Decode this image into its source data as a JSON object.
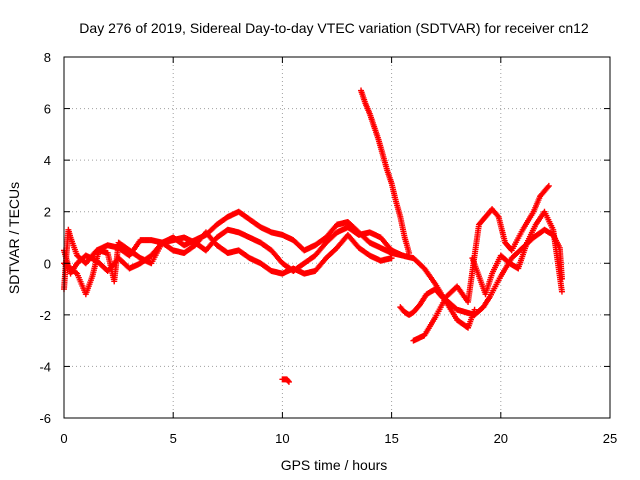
{
  "chart_data": {
    "type": "scatter",
    "title": "Day 276 of 2019, Sidereal Day-to-day VTEC variation (SDTVAR) for receiver cn12",
    "xlabel": "GPS time / hours",
    "ylabel": "SDTVAR / TECUs",
    "xlim": [
      0,
      25
    ],
    "ylim": [
      -6,
      8
    ],
    "xticks": [
      "0",
      "5",
      "10",
      "15",
      "20",
      "25"
    ],
    "yticks": [
      "-6",
      "-4",
      "-2",
      "0",
      "2",
      "4",
      "6",
      "8"
    ],
    "grid": true,
    "marker": "+",
    "series_color": "#ff0000",
    "tracks": [
      [
        [
          0.0,
          -1.0
        ],
        [
          0.1,
          0.2
        ],
        [
          0.2,
          1.3
        ],
        [
          0.3,
          1.0
        ],
        [
          0.6,
          0.3
        ],
        [
          1.0,
          0.0
        ],
        [
          1.5,
          0.5
        ],
        [
          2.0,
          0.7
        ],
        [
          2.5,
          0.6
        ],
        [
          3.0,
          0.3
        ],
        [
          3.5,
          0.9
        ],
        [
          4.0,
          0.9
        ],
        [
          4.5,
          0.8
        ],
        [
          5.0,
          1.0
        ],
        [
          5.5,
          0.7
        ],
        [
          6.0,
          0.9
        ],
        [
          6.5,
          1.1
        ],
        [
          7.0,
          1.5
        ],
        [
          7.5,
          1.8
        ],
        [
          8.0,
          2.0
        ],
        [
          8.5,
          1.7
        ],
        [
          9.0,
          1.4
        ],
        [
          9.5,
          1.2
        ],
        [
          10.0,
          1.1
        ],
        [
          10.5,
          0.9
        ],
        [
          11.0,
          0.5
        ],
        [
          11.5,
          0.7
        ],
        [
          12.0,
          1.0
        ],
        [
          12.5,
          1.5
        ],
        [
          13.0,
          1.6
        ],
        [
          13.5,
          1.2
        ],
        [
          14.0,
          0.8
        ],
        [
          14.5,
          0.6
        ],
        [
          15.0,
          0.4
        ],
        [
          15.5,
          0.3
        ],
        [
          16.0,
          0.2
        ],
        [
          16.5,
          -0.2
        ],
        [
          17.0,
          -0.8
        ],
        [
          17.5,
          -1.5
        ],
        [
          18.0,
          -2.2
        ],
        [
          18.5,
          -2.5
        ],
        [
          18.8,
          -1.8
        ]
      ],
      [
        [
          0.0,
          0.5
        ],
        [
          0.3,
          -0.4
        ],
        [
          0.6,
          0.0
        ],
        [
          1.0,
          0.3
        ],
        [
          1.5,
          0.1
        ],
        [
          2.0,
          -0.3
        ],
        [
          2.5,
          0.2
        ],
        [
          3.0,
          -0.2
        ],
        [
          3.5,
          0.0
        ],
        [
          4.0,
          0.3
        ],
        [
          4.5,
          0.8
        ],
        [
          5.0,
          0.9
        ],
        [
          5.5,
          1.0
        ],
        [
          6.0,
          0.8
        ],
        [
          6.5,
          0.5
        ],
        [
          7.0,
          1.0
        ],
        [
          7.5,
          1.3
        ],
        [
          8.0,
          1.2
        ],
        [
          8.5,
          1.0
        ],
        [
          9.0,
          0.8
        ],
        [
          9.5,
          0.5
        ],
        [
          10.0,
          0.0
        ],
        [
          10.5,
          -0.3
        ],
        [
          11.0,
          0.0
        ],
        [
          11.5,
          0.3
        ],
        [
          12.0,
          0.8
        ],
        [
          12.5,
          1.2
        ],
        [
          13.0,
          1.4
        ],
        [
          13.5,
          1.1
        ],
        [
          14.0,
          1.2
        ],
        [
          14.5,
          1.0
        ],
        [
          15.0,
          0.5
        ],
        [
          15.5,
          0.3
        ]
      ],
      [
        [
          0.0,
          0.0
        ],
        [
          0.3,
          -0.2
        ],
        [
          0.6,
          -0.4
        ],
        [
          1.0,
          -1.2
        ],
        [
          1.3,
          -0.5
        ],
        [
          1.6,
          0.5
        ],
        [
          2.0,
          0.4
        ],
        [
          2.3,
          -0.7
        ],
        [
          2.5,
          0.8
        ],
        [
          3.0,
          0.5
        ],
        [
          3.5,
          0.2
        ],
        [
          4.0,
          0.0
        ],
        [
          4.5,
          0.8
        ],
        [
          5.0,
          0.5
        ],
        [
          5.5,
          0.4
        ],
        [
          6.0,
          0.7
        ],
        [
          6.5,
          1.2
        ],
        [
          7.0,
          0.7
        ],
        [
          7.5,
          0.4
        ],
        [
          8.0,
          0.5
        ],
        [
          8.5,
          0.2
        ],
        [
          9.0,
          0.0
        ],
        [
          9.5,
          -0.3
        ],
        [
          10.0,
          -0.4
        ],
        [
          10.5,
          -0.2
        ],
        [
          11.0,
          -0.4
        ],
        [
          11.5,
          -0.3
        ],
        [
          12.0,
          0.2
        ],
        [
          12.5,
          0.6
        ],
        [
          13.0,
          1.1
        ],
        [
          13.5,
          0.6
        ],
        [
          14.0,
          0.3
        ],
        [
          14.5,
          0.1
        ],
        [
          15.0,
          0.2
        ]
      ],
      [
        [
          13.6,
          6.7
        ],
        [
          13.8,
          6.2
        ],
        [
          14.0,
          5.8
        ],
        [
          14.2,
          5.3
        ],
        [
          14.4,
          4.8
        ],
        [
          14.6,
          4.2
        ],
        [
          14.8,
          3.6
        ],
        [
          15.0,
          3.1
        ],
        [
          15.2,
          2.4
        ],
        [
          15.4,
          1.8
        ],
        [
          15.6,
          1.0
        ],
        [
          15.8,
          0.4
        ]
      ],
      [
        [
          15.4,
          -1.7
        ],
        [
          15.6,
          -1.9
        ],
        [
          15.8,
          -2.0
        ],
        [
          16.0,
          -1.9
        ],
        [
          16.3,
          -1.6
        ],
        [
          16.6,
          -1.2
        ],
        [
          17.0,
          -1.0
        ],
        [
          17.3,
          -1.3
        ],
        [
          17.6,
          -1.5
        ],
        [
          18.0,
          -1.8
        ],
        [
          18.4,
          -1.9
        ],
        [
          18.8,
          -2.0
        ],
        [
          19.2,
          -1.7
        ],
        [
          19.5,
          -1.3
        ],
        [
          20.0,
          -0.5
        ],
        [
          20.5,
          0.2
        ],
        [
          21.0,
          0.6
        ],
        [
          21.5,
          1.0
        ],
        [
          22.0,
          1.3
        ],
        [
          22.4,
          1.1
        ],
        [
          22.7,
          0.6
        ],
        [
          22.8,
          -0.6
        ]
      ],
      [
        [
          16.0,
          -3.0
        ],
        [
          16.5,
          -2.8
        ],
        [
          17.0,
          -2.1
        ],
        [
          17.5,
          -1.3
        ],
        [
          18.0,
          -0.9
        ],
        [
          18.5,
          -1.5
        ],
        [
          18.8,
          0.3
        ],
        [
          19.0,
          1.5
        ],
        [
          19.3,
          1.8
        ],
        [
          19.6,
          2.1
        ],
        [
          19.9,
          1.8
        ],
        [
          20.2,
          0.8
        ],
        [
          20.5,
          0.5
        ],
        [
          21.0,
          1.3
        ],
        [
          21.5,
          2.0
        ],
        [
          21.8,
          2.6
        ],
        [
          22.2,
          3.0
        ]
      ],
      [
        [
          18.7,
          0.2
        ],
        [
          19.0,
          -0.5
        ],
        [
          19.3,
          -1.2
        ],
        [
          19.6,
          -0.4
        ],
        [
          20.0,
          0.3
        ],
        [
          20.4,
          0.0
        ],
        [
          20.8,
          -0.2
        ],
        [
          21.2,
          0.8
        ],
        [
          21.6,
          1.5
        ],
        [
          22.0,
          2.0
        ],
        [
          22.4,
          1.3
        ],
        [
          22.8,
          -1.1
        ]
      ],
      [
        [
          10.0,
          -4.5
        ],
        [
          10.2,
          -4.5
        ],
        [
          10.3,
          -4.6
        ]
      ]
    ]
  }
}
